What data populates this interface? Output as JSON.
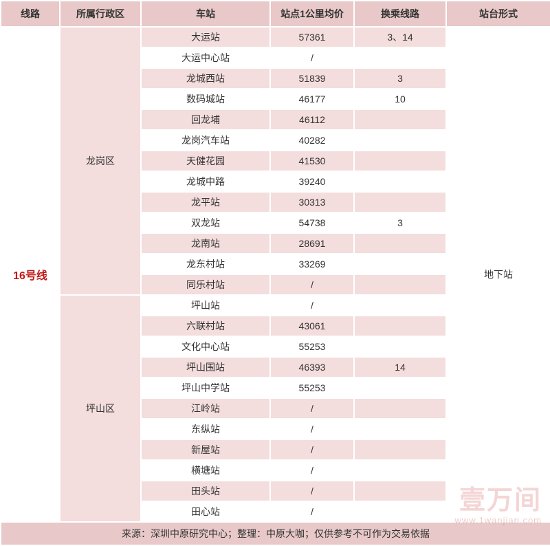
{
  "columns": {
    "line": "线路",
    "district": "所属行政区",
    "station": "车站",
    "price": "站点1公里均价",
    "transfer": "换乘线路",
    "platform": "站台形式"
  },
  "line_label": "16号线",
  "platform_label": "地下站",
  "districts": [
    {
      "name": "龙岗区",
      "start": 0,
      "count": 13
    },
    {
      "name": "坪山区",
      "start": 13,
      "count": 11
    }
  ],
  "rows": [
    {
      "station": "大运站",
      "price": "57361",
      "transfer": "3、14"
    },
    {
      "station": "大运中心站",
      "price": "/",
      "transfer": ""
    },
    {
      "station": "龙城西站",
      "price": "51839",
      "transfer": "3"
    },
    {
      "station": "数码城站",
      "price": "46177",
      "transfer": "10"
    },
    {
      "station": "回龙埔",
      "price": "46112",
      "transfer": ""
    },
    {
      "station": "龙岗汽车站",
      "price": "40282",
      "transfer": ""
    },
    {
      "station": "天健花园",
      "price": "41530",
      "transfer": ""
    },
    {
      "station": "龙城中路",
      "price": "39240",
      "transfer": ""
    },
    {
      "station": "龙平站",
      "price": "30313",
      "transfer": ""
    },
    {
      "station": "双龙站",
      "price": "54738",
      "transfer": "3"
    },
    {
      "station": "龙南站",
      "price": "28691",
      "transfer": ""
    },
    {
      "station": "龙东村站",
      "price": "33269",
      "transfer": ""
    },
    {
      "station": "同乐村站",
      "price": "/",
      "transfer": ""
    },
    {
      "station": "坪山站",
      "price": "/",
      "transfer": ""
    },
    {
      "station": "六联村站",
      "price": "43061",
      "transfer": ""
    },
    {
      "station": "文化中心站",
      "price": "55253",
      "transfer": ""
    },
    {
      "station": "坪山围站",
      "price": "46393",
      "transfer": "14"
    },
    {
      "station": "坪山中学站",
      "price": "55253",
      "transfer": ""
    },
    {
      "station": "江岭站",
      "price": "/",
      "transfer": ""
    },
    {
      "station": "东纵站",
      "price": "/",
      "transfer": ""
    },
    {
      "station": "新屋站",
      "price": "/",
      "transfer": ""
    },
    {
      "station": "横塘站",
      "price": "/",
      "transfer": ""
    },
    {
      "station": "田头站",
      "price": "/",
      "transfer": ""
    },
    {
      "station": "田心站",
      "price": "/",
      "transfer": ""
    }
  ],
  "footer": "来源：深圳中原研究中心；整理：中原大咖；仅供参考不可作为交易依据",
  "watermark": {
    "main": "壹万间",
    "sub": "www.1wanjian.com"
  },
  "col_widths": {
    "line": 86,
    "district": 118,
    "station": 188,
    "price": 122,
    "transfer": 134,
    "platform": 152
  },
  "colors": {
    "header_bg": "#e8c8c8",
    "stripe_bg": "#f4dddd",
    "line_color": "#c01818",
    "text": "#333333",
    "border": "#ffffff"
  }
}
